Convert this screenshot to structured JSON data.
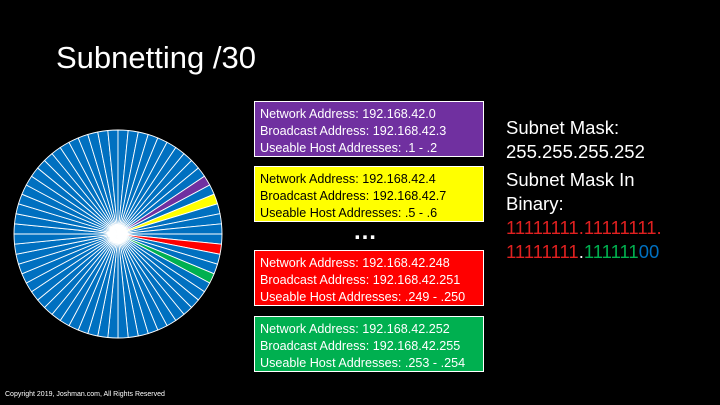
{
  "slide": {
    "title": "Subnetting /30",
    "copyright": "Copyright 2019, Joshman.com, All Rights Reserved",
    "ellipsis": "…"
  },
  "subnets": [
    {
      "network": "Network Address: 192.168.42.0",
      "broadcast": "Broadcast Address: 192.168.42.3",
      "hosts": "Useable Host Addresses: .1 - .2",
      "bg": "#7030a0",
      "fg": "#ffffff"
    },
    {
      "network": "Network Address: 192.168.42.4",
      "broadcast": "Broadcast Address: 192.168.42.7",
      "hosts": "Useable Host Addresses: .5 - .6",
      "bg": "#ffff00",
      "fg": "#000000"
    },
    {
      "network": "Network Address: 192.168.42.248",
      "broadcast": "Broadcast Address: 192.168.42.251",
      "hosts": "Useable Host Addresses: .249 - .250",
      "bg": "#ff0000",
      "fg": "#ffffff"
    },
    {
      "network": "Network Address: 192.168.42.252",
      "broadcast": "Broadcast Address: 192.168.42.255",
      "hosts": "Useable Host Addresses: .253 - .254",
      "bg": "#00b050",
      "fg": "#ffffff"
    }
  ],
  "mask": {
    "label": "Subnet Mask:",
    "value": "255.255.255.252",
    "binary_label_1": "Subnet Mask In",
    "binary_label_2": "Binary:",
    "binary_line1": "11111111.11111111.",
    "binary_line2_red": "11111111",
    "binary_line2_dot": ".",
    "binary_line2_green": "111111",
    "binary_line2_blue": "00"
  },
  "colors": {
    "background": "#000000",
    "pie_blue": "#0070c0",
    "purple": "#7030a0",
    "yellow": "#ffff00",
    "red": "#ff0000",
    "green": "#00b050",
    "mask_red": "#e02020",
    "mask_green": "#00b050",
    "mask_blue": "#0070c0"
  },
  "pie": {
    "total_slices": 64,
    "highlighted": [
      {
        "slice": 2,
        "color": "purple"
      },
      {
        "slice": 4,
        "color": "yellow"
      },
      {
        "slice": 9,
        "color": "red"
      },
      {
        "slice": 12,
        "color": "green"
      }
    ]
  }
}
